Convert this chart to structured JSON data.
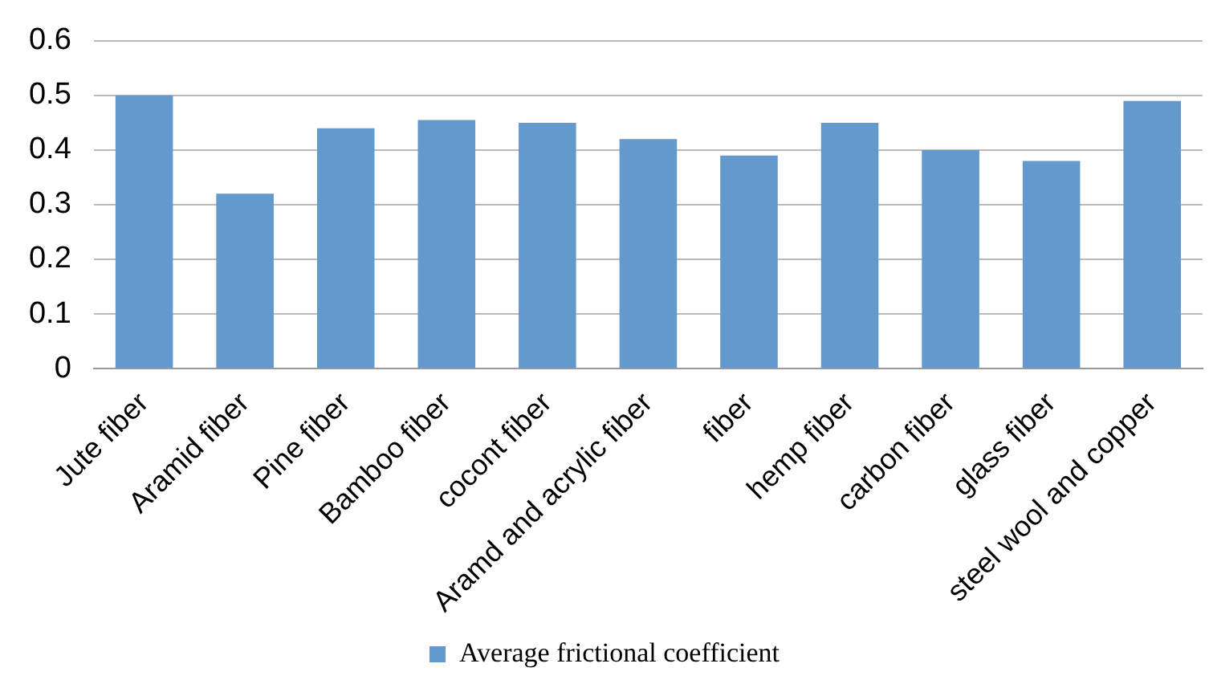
{
  "chart_data": {
    "type": "bar",
    "categories": [
      "Jute fiber",
      "Aramid fiber",
      "Pine fiber",
      "Bamboo fiber",
      "cocont fiber",
      "Aramd and acrylic fiber",
      "fiber",
      "hemp fiber",
      "carbon fiber",
      "glass fiber",
      "steel wool and copper"
    ],
    "series": [
      {
        "name": "Average frictional coefficient",
        "color": "#6399cc",
        "values": [
          0.5,
          0.32,
          0.44,
          0.455,
          0.45,
          0.42,
          0.39,
          0.45,
          0.4,
          0.38,
          0.49
        ]
      }
    ],
    "ylim": [
      0,
      0.6
    ],
    "yticks": [
      0,
      0.1,
      0.2,
      0.3,
      0.4,
      0.5,
      0.6
    ],
    "grid": "y",
    "legend": "bottom"
  }
}
